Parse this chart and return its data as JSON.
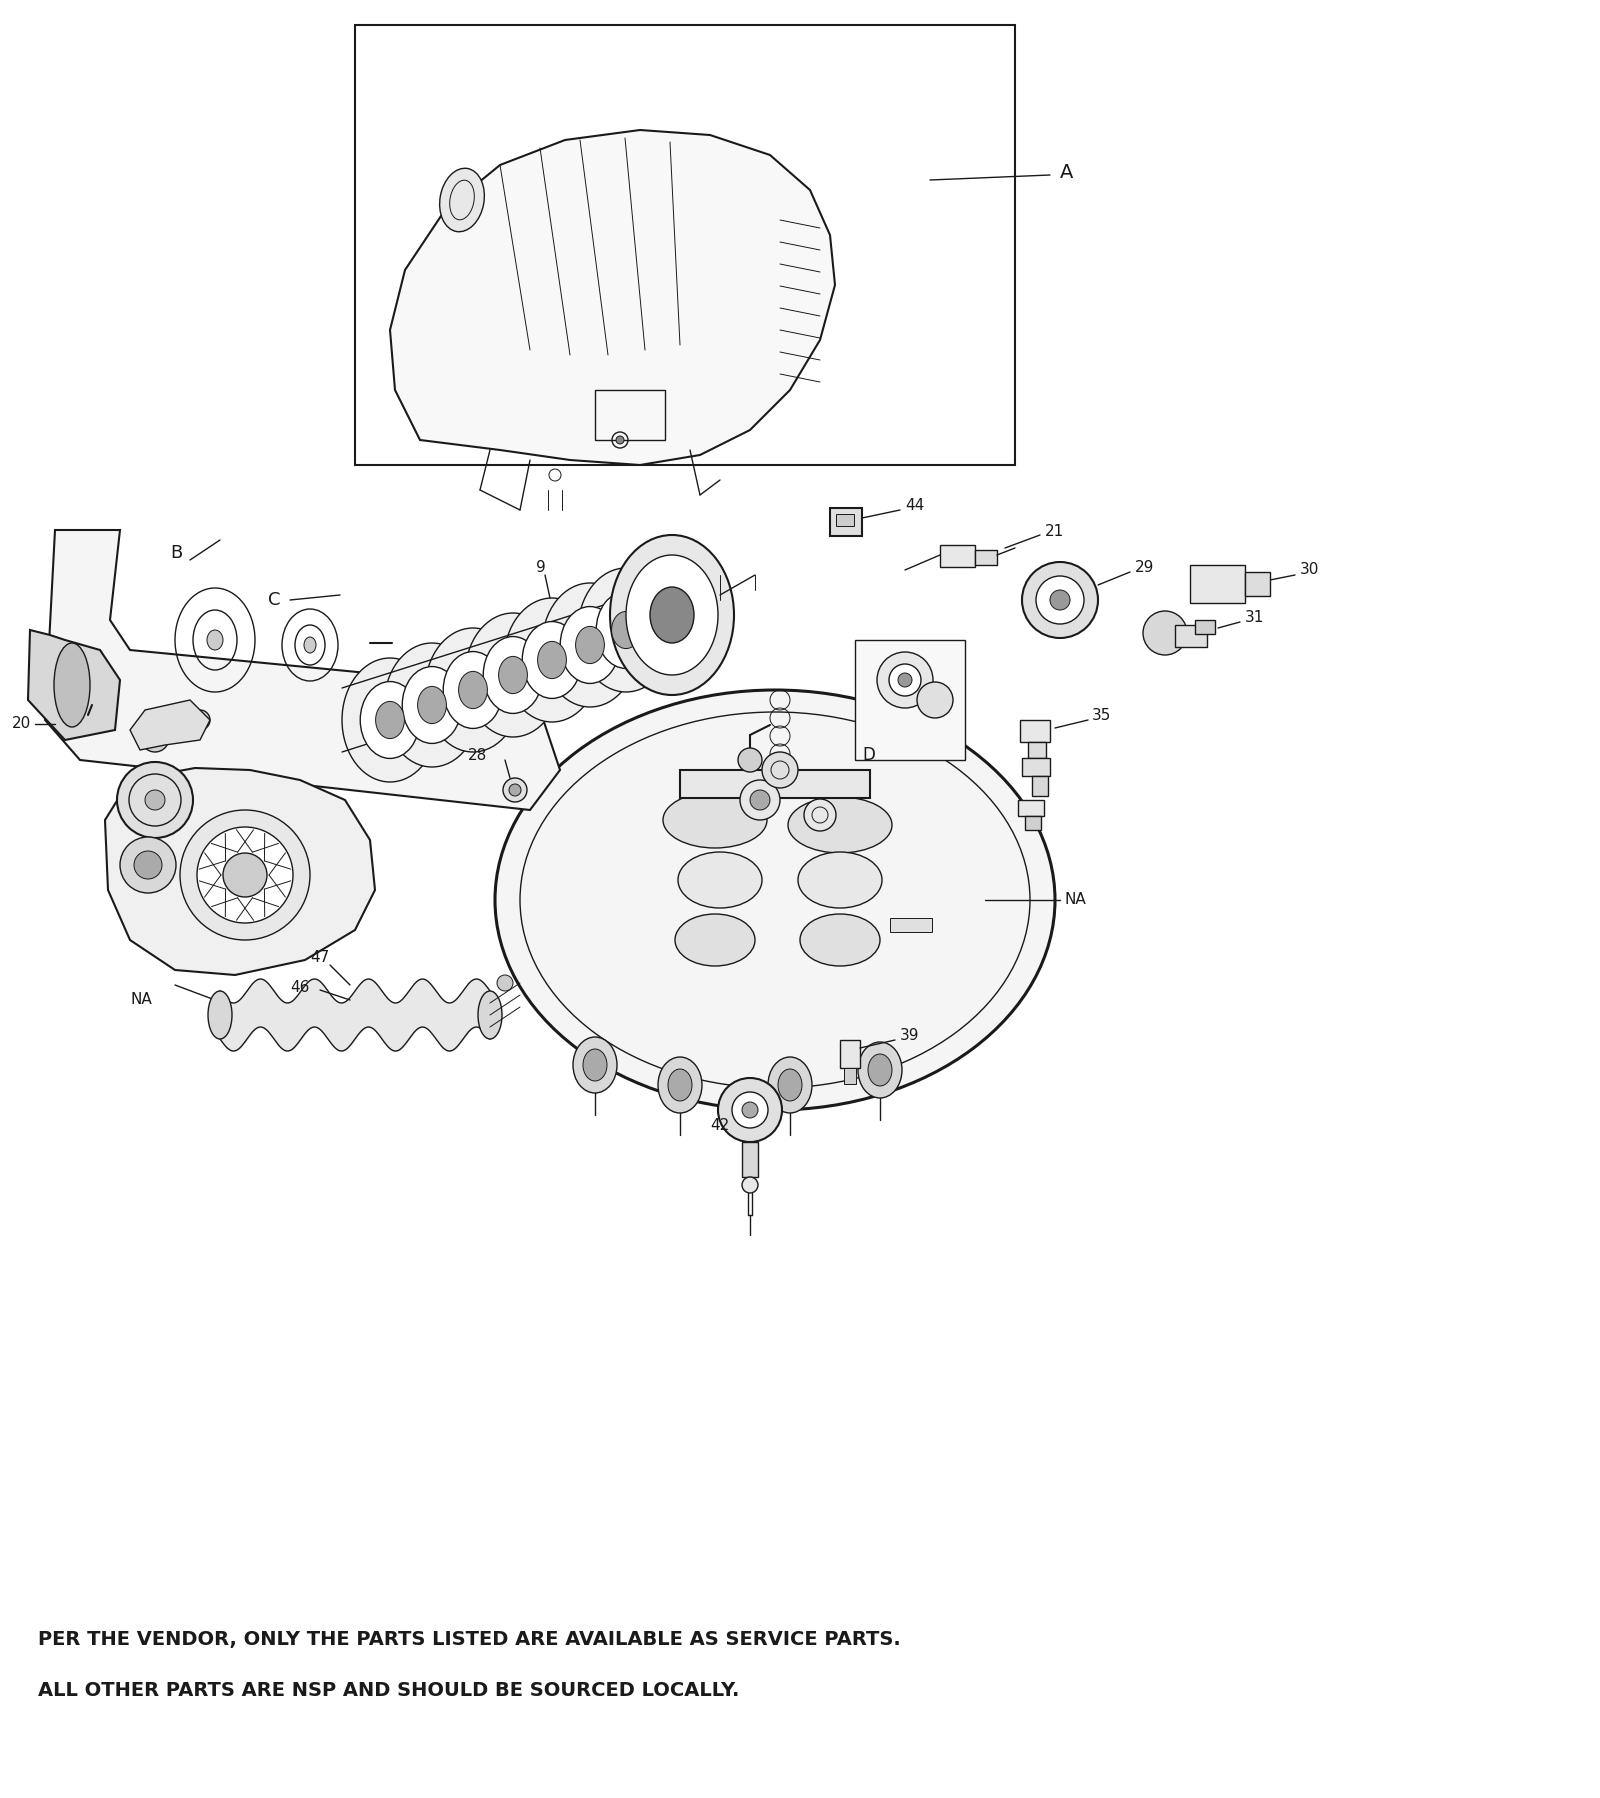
{
  "bg_color": "#ffffff",
  "line_color": "#1a1a1a",
  "fig_width": 16.0,
  "fig_height": 17.98,
  "text_line1": "PER THE VENDOR, ONLY THE PARTS LISTED ARE AVAILABLE AS SERVICE PARTS.",
  "text_line2": "ALL OTHER PARTS ARE NSP AND SHOULD BE SOURCED LOCALLY.",
  "font_size_text": 14,
  "dpi": 100,
  "xlim": [
    0,
    1600
  ],
  "ylim": [
    0,
    1798
  ]
}
